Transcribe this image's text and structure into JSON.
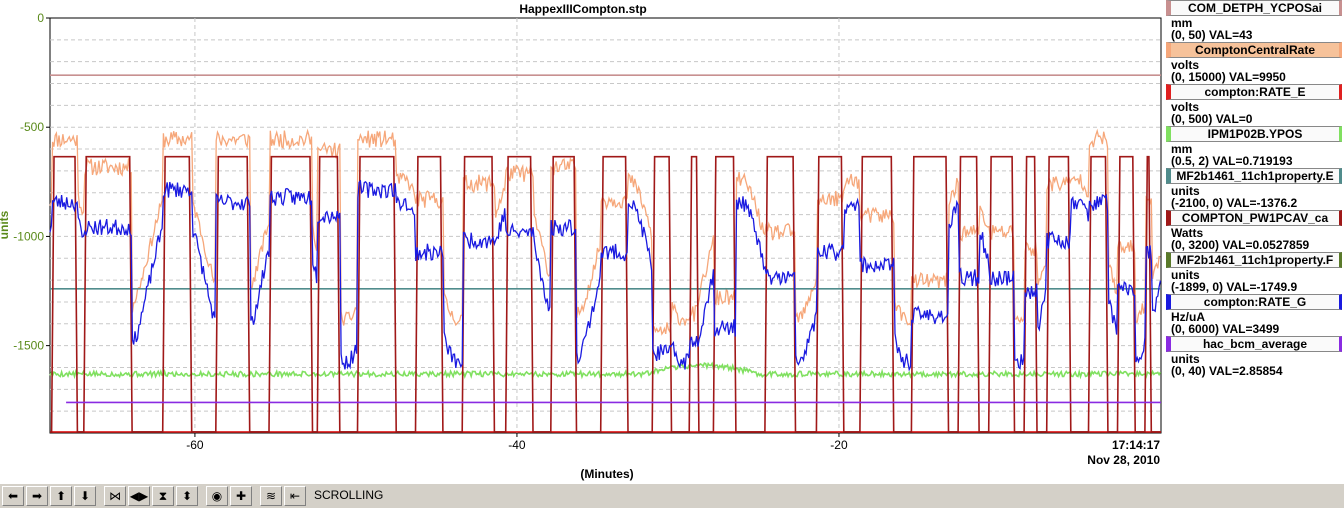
{
  "window_title": "HappexIIICompton.stp",
  "timestamp": {
    "time": "17:14:17",
    "date": "Nov 28, 2010"
  },
  "toolbar": {
    "buttons": [
      {
        "name": "scroll-left-icon",
        "glyph": "⬅"
      },
      {
        "name": "scroll-right-icon",
        "glyph": "➡"
      },
      {
        "name": "scroll-up-icon",
        "glyph": "⬆"
      },
      {
        "name": "scroll-down-icon",
        "glyph": "⬇"
      },
      {
        "name": "zoom-in-horizontal-icon",
        "glyph": "⋈"
      },
      {
        "name": "zoom-out-horizontal-icon",
        "glyph": "◀▶"
      },
      {
        "name": "zoom-in-vertical-icon",
        "glyph": "⧗"
      },
      {
        "name": "zoom-out-vertical-icon",
        "glyph": "⬍"
      },
      {
        "name": "auto-scale-icon",
        "glyph": "◉"
      },
      {
        "name": "add-pv-icon",
        "glyph": "✚"
      },
      {
        "name": "toggle-scroll-icon",
        "glyph": "≋"
      },
      {
        "name": "back-to-now-icon",
        "glyph": "⇤"
      }
    ],
    "status": "SCROLLING"
  },
  "legend": [
    {
      "name": "COM_DETPH_YCPOSai",
      "unit": "mm",
      "range": "(0, 50)  VAL=43",
      "color": "#c89090",
      "selected": false
    },
    {
      "name": "ComptonCentralRate",
      "unit": "volts",
      "range": "(0, 15000) VAL=9950",
      "color": "#f6a77a",
      "selected": true
    },
    {
      "name": "compton:RATE_E",
      "unit": "volts",
      "range": "(0, 500)  VAL=0",
      "color": "#e02020",
      "selected": false
    },
    {
      "name": "IPM1P02B.YPOS",
      "unit": "mm",
      "range": "(0.5, 2)  VAL=0.719193",
      "color": "#80e060",
      "selected": false
    },
    {
      "name": "MF2b1461_11ch1property.E",
      "unit": "units",
      "range": "(-2100, 0)  VAL=-1376.2",
      "color": "#508c8c",
      "selected": false
    },
    {
      "name": "COMPTON_PW1PCAV_ca",
      "unit": "Watts",
      "range": "(0, 3200)  VAL=0.0527859",
      "color": "#a01818",
      "selected": false
    },
    {
      "name": "MF2b1461_11ch1property.F",
      "unit": "units",
      "range": "(-1899, 0)  VAL=-1749.9",
      "color": "#5a7a2a",
      "selected": false
    },
    {
      "name": "compton:RATE_G",
      "unit": "Hz/uA",
      "range": "(0, 6000)  VAL=3499",
      "color": "#1a1ae0",
      "selected": false
    },
    {
      "name": "hac_bcm_average",
      "unit": "units",
      "range": "(0, 40)  VAL=2.85854",
      "color": "#8a2be2",
      "selected": false
    }
  ],
  "chart_data": {
    "type": "line",
    "title": "HappexIIICompton.stp",
    "xlabel": "(Minutes)",
    "ylabel": "units",
    "xlim": [
      -69,
      0
    ],
    "ylim": [
      -1900,
      0
    ],
    "xticks": [
      -60,
      -40,
      -20
    ],
    "yticks": [
      0,
      -500,
      -1000,
      -1500
    ],
    "grid": true,
    "cycles": [
      [
        -68.9,
        -67.3,
        0.9
      ],
      [
        -66.9,
        -63.9,
        0.8
      ],
      [
        -62.0,
        -60.2,
        0.95
      ],
      [
        -58.7,
        -56.6,
        0.9
      ],
      [
        -55.4,
        -52.7,
        0.92
      ],
      [
        -52.4,
        -51.0,
        0.85
      ],
      [
        -49.9,
        -47.5,
        0.95
      ],
      [
        -46.3,
        -44.6,
        0.7
      ],
      [
        -43.4,
        -41.4,
        0.75
      ],
      [
        -40.7,
        -39.0,
        0.78
      ],
      [
        -37.9,
        -36.3,
        0.8
      ],
      [
        -34.8,
        -33.1,
        0.7
      ],
      [
        -31.6,
        -30.4,
        0.3
      ],
      [
        -29.3,
        -28.7,
        0.35
      ],
      [
        -27.8,
        -26.4,
        0.4
      ],
      [
        -24.6,
        -22.7,
        0.6
      ],
      [
        -21.4,
        -19.7,
        0.7
      ],
      [
        -18.7,
        -16.6,
        0.65
      ],
      [
        -15.5,
        -13.2,
        0.45
      ],
      [
        -12.6,
        -11.3,
        0.6
      ],
      [
        -10.7,
        -9.1,
        0.6
      ],
      [
        -8.5,
        -7.7,
        0.55
      ],
      [
        -7.1,
        -5.6,
        0.75
      ],
      [
        -4.5,
        -3.3,
        0.9
      ],
      [
        -2.7,
        -1.6,
        0.55
      ],
      [
        -1.0,
        -0.6,
        0.7
      ]
    ],
    "series": [
      {
        "name": "COM_DETPH_YCPOSai",
        "color": "#c89090",
        "pattern": "flat",
        "level": -262
      },
      {
        "name": "ComptonCentralRate",
        "color": "#f6a77a",
        "pattern": "beam",
        "base": -1880,
        "k": 1.3,
        "seed": 11
      },
      {
        "name": "compton:RATE_E",
        "color": "#e02020",
        "pattern": "flat",
        "level": -1895
      },
      {
        "name": "IPM1P02B.YPOS",
        "color": "#80e060",
        "pattern": "noise",
        "level": -1630,
        "amp": 25,
        "seed": 5
      },
      {
        "name": "MF2b1461_11ch1property.E",
        "color": "#508c8c",
        "pattern": "flat",
        "level": -1240
      },
      {
        "name": "COMPTON_PW1PCAV_ca",
        "color": "#a01818",
        "pattern": "cavity",
        "on": -635,
        "off": -1895
      },
      {
        "name": "compton:RATE_G",
        "color": "#1a1ae0",
        "pattern": "beam",
        "base": -1880,
        "k": 1.0,
        "seed": 23
      },
      {
        "name": "hac_bcm_average",
        "color": "#8a2be2",
        "pattern": "flat",
        "level": -1760,
        "start": -68
      }
    ]
  }
}
